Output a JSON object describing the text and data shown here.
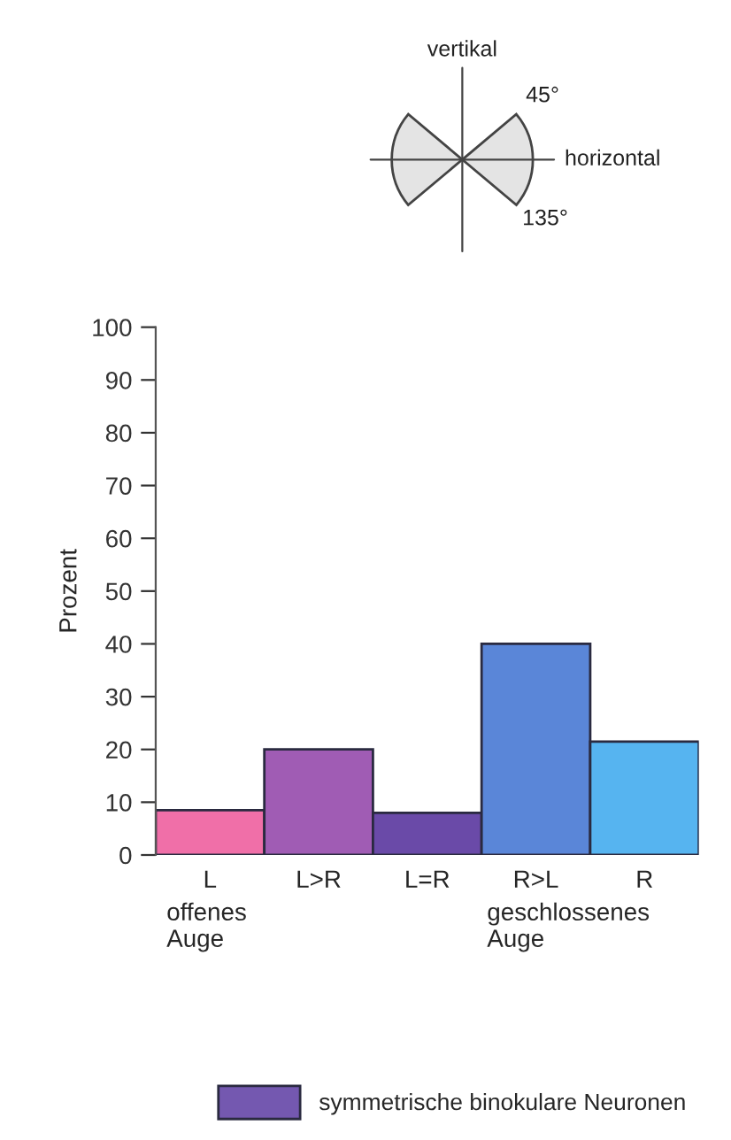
{
  "chart_data": {
    "type": "bar",
    "ylabel": "Prozent",
    "categories": [
      "L",
      "L>R",
      "L=R",
      "R>L",
      "R"
    ],
    "series": [
      {
        "name": "symmetrische binokulare Neuronen",
        "color": "#7458b0",
        "colors": [
          "#f06fa8",
          "#a05cb4",
          "#6a4aa8",
          "#5a86d8",
          "#56b4f0"
        ],
        "values": [
          8.5,
          20,
          8,
          40,
          21.5
        ]
      }
    ],
    "ylim": [
      0,
      100
    ],
    "yticks": [
      0,
      10,
      20,
      30,
      40,
      50,
      60,
      70,
      80,
      90,
      100
    ],
    "annotations": [
      "vertikal",
      "45°",
      "horizontal",
      "135°",
      "offenes\nAuge",
      "geschlossenes\nAuge"
    ],
    "legend": "bottom",
    "grid": false
  }
}
